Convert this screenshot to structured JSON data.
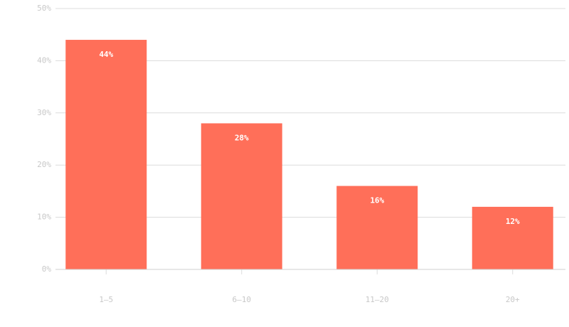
{
  "chart_data": {
    "type": "bar",
    "categories": [
      "1–5",
      "6–10",
      "11–20",
      "20+"
    ],
    "values": [
      44,
      28,
      16,
      12
    ],
    "value_labels": [
      "44%",
      "28%",
      "16%",
      "12%"
    ],
    "color": "#ff6f59",
    "ylim": [
      0,
      50
    ],
    "yticks": [
      {
        "value": 0,
        "label": "0%"
      },
      {
        "value": 10,
        "label": "10%"
      },
      {
        "value": 20,
        "label": "20%"
      },
      {
        "value": 30,
        "label": "30%"
      },
      {
        "value": 40,
        "label": "40%"
      },
      {
        "value": 50,
        "label": "50%"
      }
    ],
    "grid": true
  }
}
